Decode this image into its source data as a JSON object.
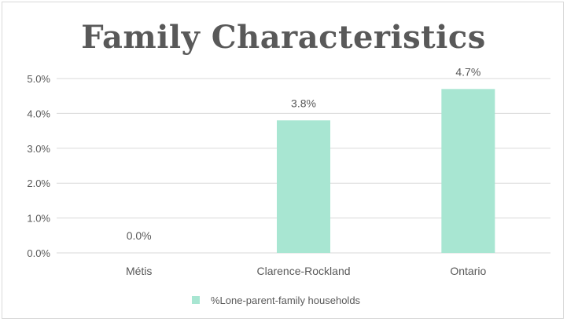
{
  "chart_data": {
    "type": "bar",
    "title": "Family Characteristics",
    "categories": [
      "Métis",
      "Clarence-Rockland",
      "Ontario"
    ],
    "series": [
      {
        "name": "%Lone-parent-family households",
        "values": [
          0.0,
          3.8,
          4.7
        ],
        "data_labels": [
          "0.0%",
          "3.8%",
          "4.7%"
        ],
        "color": "#a8e6d2"
      }
    ],
    "ylim": [
      0,
      5
    ],
    "yticks": [
      0,
      1,
      2,
      3,
      4,
      5
    ],
    "ytick_labels": [
      "0.0%",
      "1.0%",
      "2.0%",
      "3.0%",
      "4.0%",
      "5.0%"
    ],
    "grid": true,
    "legend_position": "bottom",
    "colors": {
      "gridline": "#d9d9d9",
      "text": "#595959"
    }
  }
}
